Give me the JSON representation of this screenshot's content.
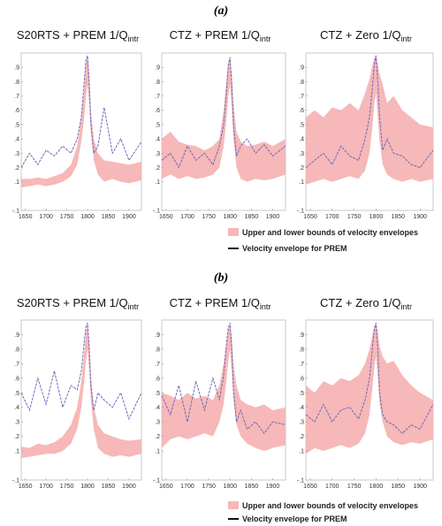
{
  "panels": [
    {
      "label": "(a)",
      "legend": {
        "band_label": "Upper and lower bounds of velocity envelopes",
        "line_label": "Velocity envelope for PREM"
      },
      "chart_data": [
        {
          "type": "line",
          "title": "S20RTS + PREM 1/Q",
          "title_sub": "intr",
          "xlim": [
            1640,
            1930
          ],
          "ylim": [
            -0.1,
            1.0
          ],
          "xticks": [
            1650,
            1700,
            1750,
            1800,
            1850,
            1900
          ],
          "yticks": [
            -0.1,
            0.1,
            0.2,
            0.3,
            0.4,
            0.5,
            0.6,
            0.7,
            0.8,
            0.9
          ],
          "x": [
            1640,
            1660,
            1680,
            1700,
            1720,
            1740,
            1760,
            1775,
            1785,
            1792,
            1796,
            1800,
            1804,
            1808,
            1815,
            1825,
            1840,
            1860,
            1880,
            1900,
            1930
          ],
          "series": [
            {
              "role": "band-upper",
              "values": [
                0.12,
                0.12,
                0.13,
                0.12,
                0.14,
                0.16,
                0.22,
                0.35,
                0.55,
                0.75,
                0.92,
                0.98,
                0.85,
                0.6,
                0.4,
                0.3,
                0.25,
                0.24,
                0.23,
                0.22,
                0.24
              ]
            },
            {
              "role": "band-lower",
              "values": [
                0.06,
                0.07,
                0.08,
                0.07,
                0.08,
                0.1,
                0.14,
                0.22,
                0.38,
                0.55,
                0.7,
                0.78,
                0.65,
                0.45,
                0.25,
                0.15,
                0.1,
                0.12,
                0.1,
                0.09,
                0.11
              ]
            },
            {
              "role": "line",
              "values": [
                0.2,
                0.3,
                0.22,
                0.32,
                0.28,
                0.35,
                0.3,
                0.4,
                0.55,
                0.8,
                0.95,
                0.98,
                0.8,
                0.5,
                0.3,
                0.35,
                0.62,
                0.3,
                0.4,
                0.25,
                0.38
              ]
            }
          ]
        },
        {
          "type": "line",
          "title": "CTZ + PREM 1/Q",
          "title_sub": "intr",
          "xlim": [
            1640,
            1930
          ],
          "ylim": [
            -0.1,
            1.0
          ],
          "xticks": [
            1650,
            1700,
            1750,
            1800,
            1850,
            1900
          ],
          "yticks": [
            -0.1,
            0.1,
            0.2,
            0.3,
            0.4,
            0.5,
            0.6,
            0.7,
            0.8,
            0.9
          ],
          "x": [
            1640,
            1660,
            1680,
            1700,
            1720,
            1740,
            1760,
            1775,
            1785,
            1792,
            1796,
            1800,
            1804,
            1808,
            1815,
            1825,
            1840,
            1860,
            1880,
            1900,
            1930
          ],
          "series": [
            {
              "role": "band-upper",
              "values": [
                0.4,
                0.45,
                0.38,
                0.36,
                0.35,
                0.32,
                0.35,
                0.4,
                0.6,
                0.82,
                0.93,
                0.97,
                0.85,
                0.65,
                0.45,
                0.38,
                0.35,
                0.36,
                0.38,
                0.35,
                0.4
              ]
            },
            {
              "role": "band-lower",
              "values": [
                0.12,
                0.15,
                0.12,
                0.14,
                0.12,
                0.13,
                0.15,
                0.2,
                0.35,
                0.55,
                0.7,
                0.78,
                0.62,
                0.4,
                0.2,
                0.12,
                0.1,
                0.12,
                0.11,
                0.12,
                0.15
              ]
            },
            {
              "role": "line",
              "values": [
                0.25,
                0.3,
                0.2,
                0.35,
                0.25,
                0.3,
                0.22,
                0.35,
                0.5,
                0.75,
                0.92,
                0.97,
                0.78,
                0.5,
                0.28,
                0.35,
                0.4,
                0.3,
                0.36,
                0.28,
                0.35
              ]
            }
          ]
        },
        {
          "type": "line",
          "title": "CTZ + Zero 1/Q",
          "title_sub": "intr",
          "xlim": [
            1640,
            1930
          ],
          "ylim": [
            -0.1,
            1.0
          ],
          "xticks": [
            1650,
            1700,
            1750,
            1800,
            1850,
            1900
          ],
          "yticks": [
            -0.1,
            0.1,
            0.2,
            0.3,
            0.4,
            0.5,
            0.6,
            0.7,
            0.8,
            0.9
          ],
          "x": [
            1640,
            1660,
            1680,
            1700,
            1720,
            1740,
            1760,
            1775,
            1785,
            1792,
            1796,
            1800,
            1804,
            1808,
            1815,
            1825,
            1840,
            1860,
            1880,
            1900,
            1930
          ],
          "series": [
            {
              "role": "band-upper",
              "values": [
                0.55,
                0.6,
                0.55,
                0.62,
                0.6,
                0.65,
                0.6,
                0.72,
                0.82,
                0.92,
                0.97,
                0.99,
                0.92,
                0.85,
                0.78,
                0.65,
                0.7,
                0.6,
                0.55,
                0.5,
                0.48
              ]
            },
            {
              "role": "band-lower",
              "values": [
                0.08,
                0.1,
                0.12,
                0.1,
                0.12,
                0.14,
                0.12,
                0.18,
                0.3,
                0.5,
                0.65,
                0.72,
                0.55,
                0.38,
                0.22,
                0.15,
                0.12,
                0.1,
                0.12,
                0.1,
                0.12
              ]
            },
            {
              "role": "line",
              "values": [
                0.2,
                0.25,
                0.3,
                0.22,
                0.35,
                0.28,
                0.25,
                0.4,
                0.55,
                0.78,
                0.92,
                0.98,
                0.8,
                0.55,
                0.32,
                0.4,
                0.3,
                0.28,
                0.22,
                0.2,
                0.32
              ]
            }
          ]
        }
      ]
    },
    {
      "label": "(b)",
      "legend": {
        "band_label": "Upper and lower bounds of velocity envelopes",
        "line_label": "Velocity envelope for PREM"
      },
      "chart_data": [
        {
          "type": "line",
          "title": "S20RTS + PREM 1/Q",
          "title_sub": "intr",
          "xlim": [
            1640,
            1930
          ],
          "ylim": [
            -0.1,
            1.0
          ],
          "xticks": [
            1650,
            1700,
            1750,
            1800,
            1850,
            1900
          ],
          "yticks": [
            -0.1,
            0.1,
            0.2,
            0.3,
            0.4,
            0.5,
            0.6,
            0.7,
            0.8,
            0.9
          ],
          "x": [
            1640,
            1660,
            1680,
            1700,
            1720,
            1740,
            1760,
            1775,
            1785,
            1792,
            1796,
            1800,
            1804,
            1808,
            1815,
            1825,
            1840,
            1860,
            1880,
            1900,
            1930
          ],
          "series": [
            {
              "role": "band-upper",
              "values": [
                0.13,
                0.12,
                0.15,
                0.14,
                0.16,
                0.2,
                0.28,
                0.4,
                0.58,
                0.78,
                0.92,
                0.98,
                0.85,
                0.62,
                0.4,
                0.28,
                0.22,
                0.2,
                0.18,
                0.17,
                0.18
              ]
            },
            {
              "role": "band-lower",
              "values": [
                0.05,
                0.06,
                0.07,
                0.08,
                0.08,
                0.1,
                0.15,
                0.25,
                0.4,
                0.58,
                0.72,
                0.8,
                0.65,
                0.45,
                0.25,
                0.12,
                0.08,
                0.06,
                0.07,
                0.06,
                0.08
              ]
            },
            {
              "role": "line",
              "values": [
                0.5,
                0.38,
                0.6,
                0.42,
                0.65,
                0.4,
                0.55,
                0.52,
                0.65,
                0.85,
                0.95,
                0.98,
                0.82,
                0.55,
                0.38,
                0.5,
                0.45,
                0.4,
                0.5,
                0.32,
                0.5
              ]
            }
          ]
        },
        {
          "type": "line",
          "title": "CTZ + PREM 1/Q",
          "title_sub": "intr",
          "xlim": [
            1640,
            1930
          ],
          "ylim": [
            -0.1,
            1.0
          ],
          "xticks": [
            1650,
            1700,
            1750,
            1800,
            1850,
            1900
          ],
          "yticks": [
            -0.1,
            0.1,
            0.2,
            0.3,
            0.4,
            0.5,
            0.6,
            0.7,
            0.8,
            0.9
          ],
          "x": [
            1640,
            1660,
            1680,
            1700,
            1720,
            1740,
            1760,
            1775,
            1785,
            1792,
            1796,
            1800,
            1804,
            1808,
            1815,
            1825,
            1840,
            1860,
            1880,
            1900,
            1930
          ],
          "series": [
            {
              "role": "band-upper",
              "values": [
                0.5,
                0.48,
                0.45,
                0.5,
                0.46,
                0.48,
                0.45,
                0.55,
                0.7,
                0.85,
                0.94,
                0.97,
                0.88,
                0.7,
                0.55,
                0.45,
                0.42,
                0.4,
                0.42,
                0.38,
                0.4
              ]
            },
            {
              "role": "band-lower",
              "values": [
                0.12,
                0.18,
                0.2,
                0.18,
                0.2,
                0.22,
                0.2,
                0.3,
                0.42,
                0.6,
                0.72,
                0.8,
                0.65,
                0.45,
                0.28,
                0.2,
                0.15,
                0.12,
                0.1,
                0.12,
                0.14
              ]
            },
            {
              "role": "line",
              "values": [
                0.48,
                0.35,
                0.55,
                0.3,
                0.58,
                0.38,
                0.6,
                0.45,
                0.62,
                0.85,
                0.95,
                0.98,
                0.8,
                0.52,
                0.3,
                0.38,
                0.25,
                0.3,
                0.22,
                0.3,
                0.28
              ]
            }
          ]
        },
        {
          "type": "line",
          "title": "CTZ + Zero 1/Q",
          "title_sub": "intr",
          "xlim": [
            1640,
            1930
          ],
          "ylim": [
            -0.1,
            1.0
          ],
          "xticks": [
            1650,
            1700,
            1750,
            1800,
            1850,
            1900
          ],
          "yticks": [
            -0.1,
            0.1,
            0.2,
            0.3,
            0.4,
            0.5,
            0.6,
            0.7,
            0.8,
            0.9
          ],
          "x": [
            1640,
            1660,
            1680,
            1700,
            1720,
            1740,
            1760,
            1775,
            1785,
            1792,
            1796,
            1800,
            1804,
            1808,
            1815,
            1825,
            1840,
            1860,
            1880,
            1900,
            1930
          ],
          "series": [
            {
              "role": "band-upper",
              "values": [
                0.55,
                0.5,
                0.58,
                0.55,
                0.6,
                0.58,
                0.62,
                0.7,
                0.8,
                0.9,
                0.96,
                0.98,
                0.92,
                0.82,
                0.75,
                0.7,
                0.72,
                0.62,
                0.55,
                0.5,
                0.45
              ]
            },
            {
              "role": "band-lower",
              "values": [
                0.08,
                0.12,
                0.1,
                0.12,
                0.14,
                0.12,
                0.15,
                0.22,
                0.35,
                0.55,
                0.68,
                0.75,
                0.6,
                0.42,
                0.3,
                0.2,
                0.16,
                0.14,
                0.16,
                0.15,
                0.18
              ]
            },
            {
              "role": "line",
              "values": [
                0.35,
                0.3,
                0.42,
                0.3,
                0.38,
                0.4,
                0.32,
                0.45,
                0.6,
                0.82,
                0.94,
                0.98,
                0.8,
                0.5,
                0.35,
                0.3,
                0.28,
                0.22,
                0.28,
                0.25,
                0.42
              ]
            }
          ]
        }
      ]
    }
  ]
}
